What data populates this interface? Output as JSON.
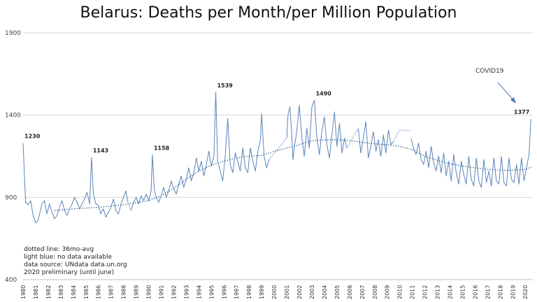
{
  "chart_data": {
    "type": "line",
    "title": "Belarus: Deaths per Month/per Million Population",
    "ylim": [
      400,
      1900
    ],
    "y_ticks": [
      "400",
      "900",
      "1400",
      "1900"
    ],
    "grid": true,
    "x_tick_labels": [
      "1980",
      "1981",
      "1982",
      "1983",
      "1984",
      "1985",
      "1986",
      "1987",
      "1988",
      "1989",
      "1990",
      "1991",
      "1992",
      "1993",
      "1994",
      "1995",
      "1996",
      "1997",
      "1998",
      "1999",
      "2000",
      "2001",
      "2002",
      "2003",
      "2004",
      "2005",
      "2006",
      "2007",
      "2008",
      "2009",
      "2010",
      "2011",
      "2012",
      "2013",
      "2014",
      "2015",
      "2016",
      "2017",
      "2018",
      "2019",
      "2020"
    ],
    "series": [
      {
        "style": "solid",
        "color": "#5b84b8",
        "segments": [
          [
            [
              1980.0,
              1230
            ],
            [
              1980.2,
              870
            ],
            [
              1980.4,
              855
            ],
            [
              1980.6,
              880
            ],
            [
              1980.8,
              790
            ],
            [
              1981.0,
              745
            ],
            [
              1981.2,
              760
            ],
            [
              1981.5,
              860
            ],
            [
              1981.7,
              880
            ],
            [
              1981.9,
              800
            ],
            [
              1982.1,
              860
            ],
            [
              1982.3,
              810
            ],
            [
              1982.5,
              770
            ],
            [
              1982.7,
              790
            ],
            [
              1982.9,
              840
            ],
            [
              1983.1,
              880
            ],
            [
              1983.3,
              820
            ],
            [
              1983.5,
              790
            ],
            [
              1983.7,
              830
            ],
            [
              1983.9,
              860
            ],
            [
              1984.1,
              900
            ],
            [
              1984.3,
              870
            ],
            [
              1984.5,
              830
            ],
            [
              1984.7,
              860
            ],
            [
              1984.9,
              890
            ],
            [
              1985.1,
              930
            ],
            [
              1985.3,
              860
            ],
            [
              1985.45,
              1143
            ],
            [
              1985.6,
              920
            ],
            [
              1985.8,
              860
            ],
            [
              1986.0,
              850
            ],
            [
              1986.2,
              800
            ],
            [
              1986.4,
              830
            ],
            [
              1986.6,
              780
            ],
            [
              1986.8,
              810
            ],
            [
              1987.0,
              840
            ],
            [
              1987.2,
              890
            ],
            [
              1987.4,
              820
            ],
            [
              1987.6,
              800
            ],
            [
              1987.8,
              860
            ],
            [
              1988.0,
              900
            ],
            [
              1988.2,
              940
            ],
            [
              1988.35,
              870
            ]
          ],
          [
            [
              1988.6,
              820
            ],
            [
              1988.8,
              870
            ],
            [
              1989.0,
              900
            ],
            [
              1989.2,
              860
            ],
            [
              1989.4,
              910
            ],
            [
              1989.6,
              880
            ],
            [
              1989.8,
              920
            ],
            [
              1990.0,
              880
            ],
            [
              1990.2,
              940
            ],
            [
              1990.3,
              1158
            ],
            [
              1990.45,
              950
            ],
            [
              1990.6,
              900
            ],
            [
              1990.8,
              870
            ],
            [
              1991.0,
              910
            ],
            [
              1991.2,
              960
            ],
            [
              1991.4,
              900
            ],
            [
              1991.6,
              940
            ],
            [
              1991.8,
              1000
            ],
            [
              1992.0,
              950
            ],
            [
              1992.2,
              920
            ],
            [
              1992.4,
              980
            ],
            [
              1992.6,
              1030
            ],
            [
              1992.8,
              960
            ],
            [
              1993.0,
              1010
            ],
            [
              1993.2,
              1080
            ],
            [
              1993.4,
              1000
            ],
            [
              1993.6,
              1050
            ],
            [
              1993.8,
              1140
            ],
            [
              1994.0,
              1060
            ],
            [
              1994.2,
              1120
            ],
            [
              1994.4,
              1030
            ],
            [
              1994.6,
              1100
            ],
            [
              1994.8,
              1180
            ],
            [
              1995.0,
              1090
            ],
            [
              1995.2,
              1150
            ],
            [
              1995.35,
              1539
            ],
            [
              1995.5,
              1120
            ],
            [
              1995.7,
              1060
            ],
            [
              1995.9,
              1000
            ],
            [
              1996.1,
              1150
            ],
            [
              1996.3,
              1380
            ],
            [
              1996.5,
              1100
            ],
            [
              1996.7,
              1050
            ],
            [
              1996.9,
              1170
            ],
            [
              1997.1,
              1120
            ],
            [
              1997.3,
              1060
            ],
            [
              1997.5,
              1200
            ],
            [
              1997.7,
              1080
            ],
            [
              1997.9,
              1050
            ],
            [
              1998.1,
              1200
            ],
            [
              1998.3,
              1120
            ],
            [
              1998.5,
              1060
            ],
            [
              1998.7,
              1180
            ],
            [
              1998.9,
              1250
            ],
            [
              1999.0,
              1408
            ],
            [
              1999.2,
              1150
            ],
            [
              1999.4,
              1080
            ],
            [
              1999.6,
              1130
            ]
          ],
          [
            [
              2001.0,
              1260
            ],
            [
              2001.1,
              1400
            ],
            [
              2001.25,
              1450
            ],
            [
              2001.4,
              1280
            ],
            [
              2001.5,
              1130
            ],
            [
              2001.6,
              1200
            ],
            [
              2001.8,
              1300
            ],
            [
              2002.0,
              1460
            ],
            [
              2002.2,
              1270
            ],
            [
              2002.4,
              1150
            ],
            [
              2002.6,
              1320
            ],
            [
              2002.8,
              1200
            ],
            [
              2003.0,
              1450
            ],
            [
              2003.2,
              1490
            ],
            [
              2003.4,
              1260
            ],
            [
              2003.6,
              1160
            ],
            [
              2003.8,
              1300
            ],
            [
              2004.0,
              1390
            ],
            [
              2004.2,
              1220
            ],
            [
              2004.4,
              1140
            ],
            [
              2004.6,
              1280
            ],
            [
              2004.8,
              1420
            ],
            [
              2005.0,
              1210
            ],
            [
              2005.2,
              1350
            ],
            [
              2005.4,
              1170
            ],
            [
              2005.6,
              1260
            ],
            [
              2005.8,
              1200
            ]
          ],
          [
            [
              2006.7,
              1320
            ],
            [
              2006.9,
              1170
            ],
            [
              2007.1,
              1260
            ],
            [
              2007.3,
              1360
            ],
            [
              2007.5,
              1140
            ],
            [
              2007.7,
              1210
            ],
            [
              2007.9,
              1300
            ],
            [
              2008.1,
              1180
            ],
            [
              2008.3,
              1250
            ],
            [
              2008.5,
              1150
            ],
            [
              2008.7,
              1280
            ],
            [
              2008.9,
              1170
            ],
            [
              2009.1,
              1310
            ],
            [
              2009.3,
              1220
            ],
            [
              2009.5,
              1240
            ]
          ],
          [
            [
              2010.9,
              1260
            ],
            [
              2011.1,
              1200
            ],
            [
              2011.3,
              1160
            ],
            [
              2011.5,
              1230
            ],
            [
              2011.7,
              1130
            ],
            [
              2011.9,
              1100
            ],
            [
              2012.1,
              1180
            ],
            [
              2012.3,
              1080
            ],
            [
              2012.5,
              1210
            ],
            [
              2012.7,
              1110
            ],
            [
              2012.9,
              1060
            ],
            [
              2013.1,
              1150
            ],
            [
              2013.3,
              1050
            ],
            [
              2013.5,
              1170
            ],
            [
              2013.7,
              1030
            ],
            [
              2013.9,
              1120
            ],
            [
              2014.1,
              1000
            ],
            [
              2014.3,
              1160
            ],
            [
              2014.5,
              1050
            ],
            [
              2014.7,
              980
            ],
            [
              2014.9,
              1120
            ],
            [
              2015.1,
              1040
            ],
            [
              2015.3,
              980
            ],
            [
              2015.5,
              1150
            ],
            [
              2015.7,
              1010
            ],
            [
              2015.9,
              970
            ],
            [
              2016.1,
              1140
            ],
            [
              2016.3,
              1000
            ],
            [
              2016.5,
              960
            ],
            [
              2016.7,
              1130
            ],
            [
              2016.9,
              990
            ],
            [
              2017.1,
              1060
            ],
            [
              2017.3,
              970
            ],
            [
              2017.5,
              1140
            ],
            [
              2017.7,
              1000
            ],
            [
              2017.9,
              980
            ],
            [
              2018.1,
              1150
            ],
            [
              2018.3,
              990
            ],
            [
              2018.5,
              970
            ],
            [
              2018.7,
              1140
            ],
            [
              2018.9,
              1010
            ],
            [
              2019.1,
              990
            ],
            [
              2019.3,
              1100
            ],
            [
              2019.5,
              980
            ],
            [
              2019.7,
              1140
            ],
            [
              2019.9,
              1000
            ],
            [
              2020.1,
              1080
            ],
            [
              2020.3,
              1160
            ],
            [
              2020.45,
              1377
            ]
          ]
        ]
      },
      {
        "style": "light",
        "color": "#aac4e2",
        "segments": [
          [
            [
              1988.35,
              870
            ],
            [
              1988.6,
              820
            ]
          ],
          [
            [
              1999.6,
              1130
            ],
            [
              2001.0,
              1260
            ]
          ],
          [
            [
              2005.8,
              1200
            ],
            [
              2006.7,
              1320
            ]
          ],
          [
            [
              2009.5,
              1240
            ],
            [
              2010.0,
              1310
            ],
            [
              2010.9,
              1305
            ]
          ]
        ]
      },
      {
        "style": "dotted",
        "name": "36mo-avg",
        "color": "#2f5d99",
        "points": [
          [
            1982.5,
            820
          ],
          [
            1984,
            830
          ],
          [
            1986,
            840
          ],
          [
            1988,
            855
          ],
          [
            1990,
            880
          ],
          [
            1991,
            910
          ],
          [
            1992,
            955
          ],
          [
            1993,
            1010
          ],
          [
            1994,
            1060
          ],
          [
            1995,
            1095
          ],
          [
            1996,
            1120
          ],
          [
            1997,
            1140
          ],
          [
            1998,
            1150
          ],
          [
            1999,
            1155
          ],
          [
            2000,
            1180
          ],
          [
            2001,
            1200
          ],
          [
            2002,
            1220
          ],
          [
            2003,
            1245
          ],
          [
            2004,
            1250
          ],
          [
            2005,
            1250
          ],
          [
            2006,
            1245
          ],
          [
            2007,
            1235
          ],
          [
            2008,
            1225
          ],
          [
            2009,
            1220
          ],
          [
            2010,
            1210
          ],
          [
            2011,
            1190
          ],
          [
            2012,
            1150
          ],
          [
            2013,
            1125
          ],
          [
            2014,
            1105
          ],
          [
            2015,
            1090
          ],
          [
            2016,
            1080
          ],
          [
            2017,
            1070
          ],
          [
            2018,
            1065
          ],
          [
            2019,
            1065
          ],
          [
            2020,
            1070
          ],
          [
            2020.5,
            1085
          ]
        ]
      }
    ],
    "data_labels": [
      {
        "x": 1980.0,
        "y": 1230,
        "text": "1230"
      },
      {
        "x": 1985.45,
        "y": 1143,
        "text": "1143"
      },
      {
        "x": 1990.3,
        "y": 1158,
        "text": "1158"
      },
      {
        "x": 1995.35,
        "y": 1539,
        "text": "1539"
      },
      {
        "x": 2003.2,
        "y": 1490,
        "text": "1490"
      },
      {
        "x": 2020.45,
        "y": 1377,
        "text": "1377"
      }
    ],
    "annotation": {
      "text": "COVID19"
    },
    "notes": [
      "dotted line: 36mo-avg",
      "light blue: no  data available",
      "data source: UNdata data.un.org",
      "2020 preliminary (until june)"
    ]
  }
}
